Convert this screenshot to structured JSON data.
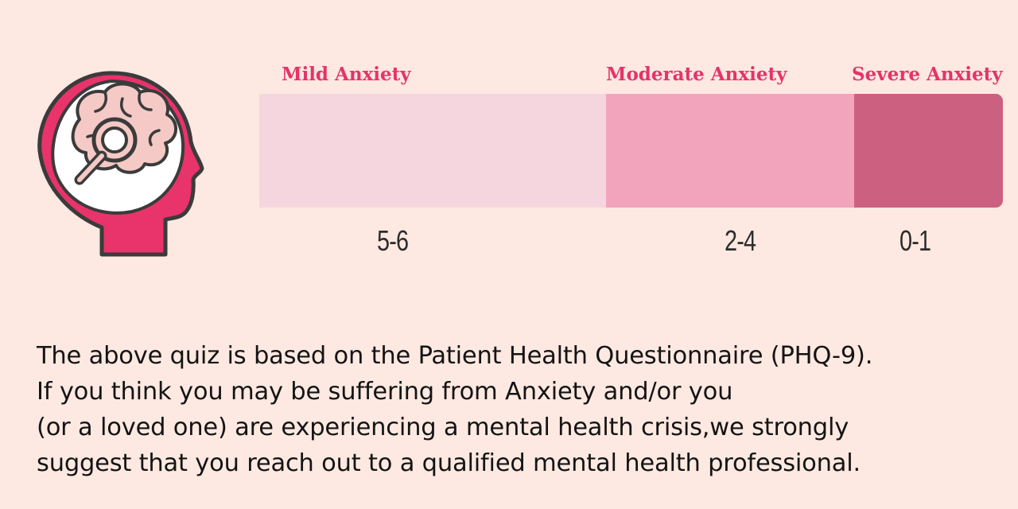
{
  "scale": {
    "segments": [
      {
        "label": "Mild Anxiety",
        "score": "5-6",
        "color": "#f6d6de"
      },
      {
        "label": "Moderate Anxiety",
        "score": "2-4",
        "color": "#f3a4bd"
      },
      {
        "label": "Severe Anxiety",
        "score": "0-1",
        "color": "#cc6081"
      }
    ],
    "label_color": "#e6336a"
  },
  "icon": "head-brain-magnifier-icon",
  "disclaimer": {
    "lines": [
      "The above quiz is based on the Patient Health Questionnaire (PHQ-9).",
      "If you think you may be suffering from Anxiety  and/or you",
      "(or a loved one) are experiencing a mental health crisis,we strongly",
      "suggest that you reach out to a qualified mental health professional."
    ]
  }
}
